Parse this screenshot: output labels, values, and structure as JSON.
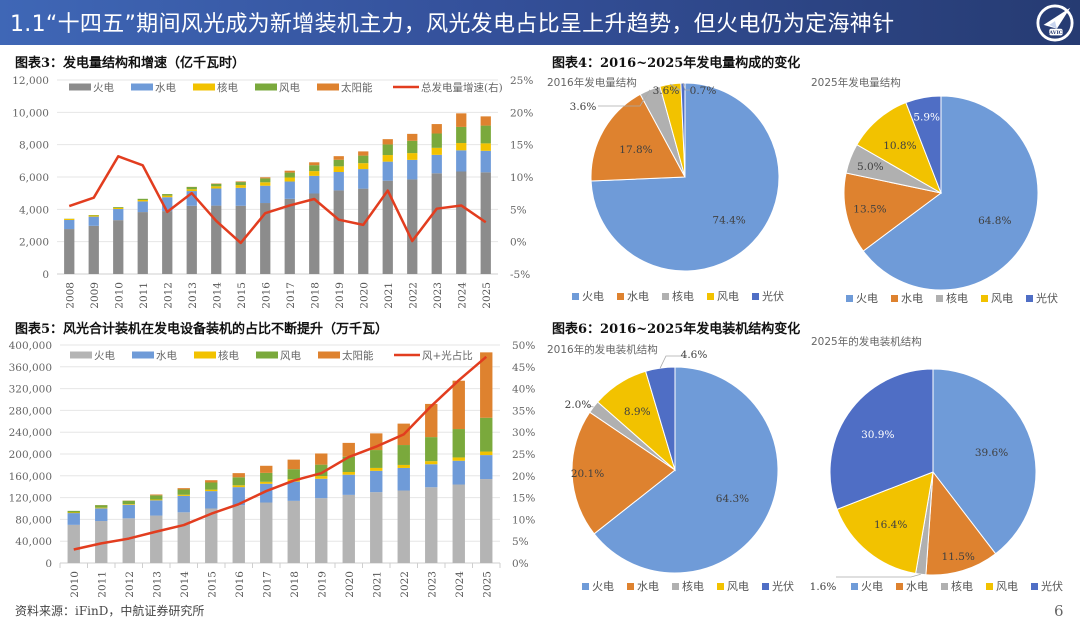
{
  "header": {
    "title": "1.1“十四五”期间风光成为新增装机主力，风光发电占比呈上升趋势，但火电仍为定海神针",
    "logo_text": "AVIC",
    "logo_icon": "avic-plane-logo-icon"
  },
  "footer": {
    "source": "资料来源：iFinD，中航证券研究所",
    "page_number": "6"
  },
  "colors": {
    "thermal_bar": "#8c8c8c",
    "thermal_bar_chart5": "#b4b4b4",
    "hydro": "#6f9bd8",
    "nuclear": "#f2c200",
    "wind": "#7aa93c",
    "solar": "#de822f",
    "line": "#e23d1f",
    "pie_thermal": "#6f9bd8",
    "pie_hydro": "#de822f",
    "pie_nuclear": "#b0b0b0",
    "pie_wind": "#f2c200",
    "pie_pv": "#4f6ec5"
  },
  "chart_data": [
    {
      "id": "chart3",
      "type": "bar",
      "stacked": true,
      "title": "图表3：发电量结构和增速（亿千瓦时）",
      "categories": [
        "2008",
        "2009",
        "2010",
        "2011",
        "2012",
        "2013",
        "2014",
        "2015",
        "2016",
        "2017",
        "2018",
        "2019",
        "2020",
        "2021",
        "2022",
        "2023",
        "2024",
        "2025"
      ],
      "series": [
        {
          "name": "火电",
          "axis": "left",
          "values": [
            2780,
            2980,
            3330,
            3830,
            3890,
            4220,
            4230,
            4220,
            4390,
            4650,
            4980,
            5170,
            5280,
            5770,
            5850,
            6230,
            6340,
            6290
          ]
        },
        {
          "name": "水电",
          "axis": "left",
          "values": [
            560,
            570,
            690,
            660,
            860,
            910,
            1060,
            1110,
            1070,
            1070,
            1090,
            1140,
            1210,
            1180,
            1210,
            1140,
            1310,
            1330
          ]
        },
        {
          "name": "核电",
          "axis": "left",
          "values": [
            68,
            70,
            74,
            87,
            98,
            112,
            133,
            171,
            213,
            248,
            295,
            349,
            366,
            408,
            418,
            434,
            451,
            460
          ]
        },
        {
          "name": "风电",
          "axis": "left",
          "values": [
            13,
            28,
            49,
            74,
            96,
            140,
            156,
            186,
            241,
            305,
            366,
            406,
            467,
            656,
            762,
            886,
            997,
            1100
          ]
        },
        {
          "name": "太阳能",
          "axis": "left",
          "values": [
            0,
            0,
            1,
            1,
            4,
            8,
            24,
            39,
            67,
            117,
            178,
            224,
            261,
            327,
            428,
            584,
            839,
            570
          ]
        },
        {
          "name": "总发电量增速(右)",
          "type": "line",
          "axis": "right",
          "values": [
            5.5,
            6.8,
            13.2,
            11.8,
            4.6,
            7.5,
            3.2,
            -0.2,
            4.4,
            5.6,
            6.6,
            3.4,
            2.6,
            7.9,
            0.1,
            5.1,
            5.6,
            3.0
          ]
        }
      ],
      "left_axis": {
        "ylim": [
          0,
          12000
        ],
        "ticks": [
          "0",
          "2,000",
          "4,000",
          "6,000",
          "8,000",
          "10,000",
          "12,000"
        ]
      },
      "right_axis": {
        "ylim": [
          -5,
          25
        ],
        "ticks": [
          "-5%",
          "0%",
          "5%",
          "10%",
          "15%",
          "20%",
          "25%"
        ]
      },
      "legend": [
        "火电",
        "水电",
        "核电",
        "风电",
        "太阳能",
        "总发电量增速(右)"
      ],
      "legend_position": "top",
      "grid": true
    },
    {
      "id": "chart5",
      "type": "bar",
      "stacked": true,
      "title": "图表5：风光合计装机在发电设备装机的占比不断提升（万千瓦）",
      "categories": [
        "2010",
        "2011",
        "2012",
        "2013",
        "2014",
        "2015",
        "2016",
        "2017",
        "2018",
        "2019",
        "2020",
        "2021",
        "2022",
        "2023",
        "2024",
        "2025"
      ],
      "series": [
        {
          "name": "火电",
          "axis": "left",
          "values": [
            70000,
            77000,
            82000,
            87000,
            93000,
            100000,
            106000,
            111000,
            114000,
            119000,
            125000,
            130000,
            133000,
            139000,
            144000,
            154000
          ]
        },
        {
          "name": "水电",
          "axis": "left",
          "values": [
            21600,
            23300,
            24900,
            28000,
            30200,
            31900,
            33200,
            34400,
            35300,
            35600,
            37000,
            39100,
            41400,
            42200,
            43600,
            44000
          ]
        },
        {
          "name": "核电",
          "axis": "left",
          "values": [
            1080,
            1260,
            1260,
            1470,
            2010,
            2720,
            3360,
            3580,
            4470,
            4870,
            4990,
            5330,
            5550,
            5690,
            6080,
            6500
          ]
        },
        {
          "name": "风电",
          "axis": "left",
          "values": [
            2960,
            4620,
            6140,
            7650,
            9660,
            13100,
            14700,
            16400,
            18400,
            21000,
            28100,
            32800,
            36500,
            44100,
            52100,
            62000
          ]
        },
        {
          "name": "太阳能",
          "axis": "left",
          "values": [
            26,
            212,
            341,
            1590,
            2490,
            4220,
            7630,
            13000,
            17500,
            20500,
            25300,
            30600,
            39300,
            60900,
            88700,
            120000
          ]
        },
        {
          "name": "风+光占比",
          "type": "line",
          "axis": "right",
          "values": [
            3.1,
            4.5,
            5.6,
            7.2,
            8.7,
            11.3,
            13.5,
            16.5,
            18.9,
            20.6,
            24.3,
            26.7,
            29.5,
            36.0,
            41.9,
            47.3
          ]
        }
      ],
      "left_axis": {
        "ylim": [
          0,
          400000
        ],
        "ticks": [
          "0",
          "40,000",
          "80,000",
          "120,000",
          "160,000",
          "200,000",
          "240,000",
          "280,000",
          "320,000",
          "360,000",
          "400,000"
        ]
      },
      "right_axis": {
        "ylim": [
          0,
          50
        ],
        "ticks": [
          "0%",
          "5%",
          "10%",
          "15%",
          "20%",
          "25%",
          "30%",
          "35%",
          "40%",
          "45%",
          "50%"
        ]
      },
      "legend": [
        "火电",
        "水电",
        "核电",
        "风电",
        "太阳能",
        "风+光占比"
      ],
      "legend_position": "top",
      "grid": true
    },
    {
      "id": "chart4a",
      "type": "pie",
      "group_title": "图表4：2016~2025年发电量构成的变化",
      "title": "2016年发电量结构",
      "labels": [
        "火电",
        "水电",
        "核电",
        "风电",
        "光伏"
      ],
      "values": [
        74.4,
        17.8,
        3.6,
        3.6,
        0.7
      ],
      "value_labels": [
        "74.4%",
        "17.8%",
        "3.6%",
        "3.6%",
        "0.7%"
      ],
      "legend_position": "bottom"
    },
    {
      "id": "chart4b",
      "type": "pie",
      "title": "2025年发电量结构",
      "labels": [
        "火电",
        "水电",
        "核电",
        "风电",
        "光伏"
      ],
      "values": [
        64.8,
        13.5,
        5.0,
        10.8,
        5.9
      ],
      "value_labels": [
        "64.8%",
        "13.5%",
        "5.0%",
        "10.8%",
        "5.9%"
      ],
      "legend_position": "bottom"
    },
    {
      "id": "chart6a",
      "type": "pie",
      "group_title": "图表6：2016~2025年发电装机结构变化",
      "title": "2016年的发电装机结构",
      "labels": [
        "火电",
        "水电",
        "核电",
        "风电",
        "光伏"
      ],
      "values": [
        64.3,
        20.1,
        2.0,
        8.9,
        4.6
      ],
      "value_labels": [
        "64.3%",
        "20.1%",
        "2.0%",
        "8.9%",
        "4.6%"
      ],
      "legend_position": "bottom"
    },
    {
      "id": "chart6b",
      "type": "pie",
      "title": "2025年的发电装机结构",
      "labels": [
        "火电",
        "水电",
        "核电",
        "风电",
        "光伏"
      ],
      "values": [
        39.6,
        11.5,
        1.6,
        16.4,
        30.9
      ],
      "value_labels": [
        "39.6%",
        "11.5%",
        "1.6%",
        "16.4%",
        "30.9%"
      ],
      "legend_position": "bottom"
    }
  ]
}
